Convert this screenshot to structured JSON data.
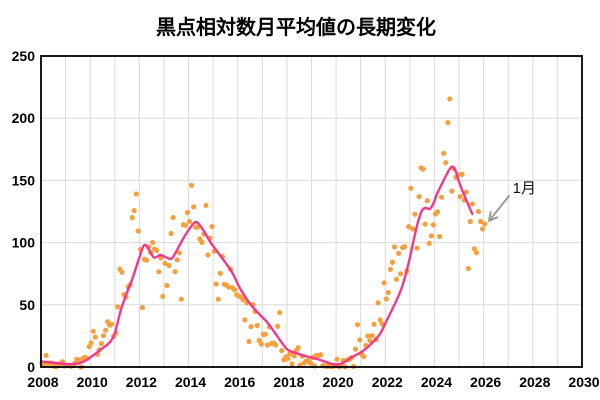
{
  "chart_data": {
    "type": "scatter+line",
    "title": "黒点相対数月平均値の長期変化",
    "xlabel": "",
    "ylabel": "",
    "xlim": [
      2008,
      2030
    ],
    "ylim": [
      0,
      250
    ],
    "x_ticks": [
      2008,
      2010,
      2012,
      2014,
      2016,
      2018,
      2020,
      2022,
      2024,
      2026,
      2028,
      2030
    ],
    "y_ticks": [
      0,
      50,
      100,
      150,
      200,
      250
    ],
    "grid": "on",
    "grid_minor_x_every_year": true,
    "legend": "none",
    "colors": {
      "monthly_dots": "#F5A03C",
      "smoothed_line": "#F0398C",
      "gridline": "#DADADA",
      "axis_frame": "#000000",
      "arrow": "#9B9B9B",
      "background": "#FFFFFF",
      "text": "#000000"
    },
    "series": [
      {
        "name": "monthly-mean-sunspot-number",
        "type": "scatter",
        "start_year": 2008,
        "start_month": 1,
        "values": [
          3.4,
          2.1,
          9.3,
          2.9,
          2.9,
          3.1,
          0.5,
          0.5,
          1.1,
          2.9,
          4.1,
          0.8,
          1.3,
          1.2,
          0.6,
          1.2,
          2.9,
          6.3,
          5.5,
          0.0,
          7.1,
          7.7,
          6.9,
          16.3,
          19.5,
          28.7,
          24.0,
          10.4,
          13.9,
          18.8,
          25.2,
          29.6,
          36.4,
          33.6,
          34.4,
          24.5,
          27.3,
          48.3,
          78.6,
          76.1,
          58.2,
          56.1,
          64.5,
          66.0,
          120.1,
          125.7,
          139.1,
          109.3,
          94.4,
          47.8,
          86.6,
          85.9,
          96.5,
          92.0,
          100.1,
          94.8,
          93.7,
          76.5,
          87.6,
          56.8,
          83.3,
          65.5,
          81.5,
          107.3,
          120.2,
          76.7,
          86.2,
          91.8,
          54.5,
          114.4,
          113.9,
          124.2,
          117.0,
          146.1,
          128.7,
          112.5,
          112.5,
          102.9,
          100.2,
          106.9,
          130.0,
          90.0,
          103.6,
          112.9,
          93.0,
          66.7,
          54.5,
          75.3,
          88.8,
          66.5,
          65.8,
          64.4,
          78.6,
          63.6,
          62.2,
          58.0,
          57.0,
          56.4,
          54.1,
          37.9,
          51.5,
          20.5,
          32.4,
          50.2,
          44.6,
          33.4,
          21.4,
          18.5,
          26.1,
          26.4,
          17.7,
          32.3,
          18.9,
          19.2,
          17.8,
          32.6,
          43.7,
          13.2,
          5.7,
          8.2,
          6.8,
          10.7,
          2.5,
          8.9,
          13.1,
          15.6,
          1.6,
          8.7,
          3.3,
          4.9,
          4.9,
          3.1,
          7.7,
          0.8,
          9.4,
          9.1,
          9.9,
          1.2,
          0.9,
          0.5,
          1.1,
          0.4,
          0.5,
          1.6,
          6.2,
          0.2,
          1.5,
          5.2,
          0.2,
          5.8,
          6.1,
          7.5,
          0.6,
          14.4,
          34.0,
          21.8,
          10.4,
          8.4,
          17.3,
          24.9,
          21.1,
          25.2,
          34.3,
          22.1,
          51.6,
          37.9,
          34.6,
          67.7,
          54.7,
          59.9,
          78.5,
          84.1,
          96.5,
          70.5,
          91.4,
          74.9,
          96.1,
          96.7,
          77.2,
          112.9,
          143.6,
          111.0,
          122.8,
          95.6,
          137.0,
          160.1,
          159.1,
          114.8,
          133.7,
          99.4,
          105.4,
          114.2,
          123.0,
          124.7,
          104.9,
          136.5,
          171.7,
          164.2,
          196.5,
          215.5,
          141.4,
          159.3,
          152.5,
          154.5,
          137.0,
          154.8,
          134.2,
          140.6,
          79.2,
          117.0,
          131.0,
          95.0,
          92.0,
          125.0,
          117.0,
          111.0,
          115.0
        ]
      },
      {
        "name": "smoothed-13-month",
        "type": "line",
        "points": [
          [
            2008.04,
            4.3
          ],
          [
            2008.3,
            3.9
          ],
          [
            2008.6,
            3.2
          ],
          [
            2008.9,
            2.6
          ],
          [
            2009.2,
            2.3
          ],
          [
            2009.5,
            2.8
          ],
          [
            2009.8,
            5.0
          ],
          [
            2010.1,
            9.0
          ],
          [
            2010.5,
            15.0
          ],
          [
            2010.8,
            20.0
          ],
          [
            2011.0,
            27.0
          ],
          [
            2011.25,
            46.0
          ],
          [
            2011.5,
            60.0
          ],
          [
            2011.7,
            70.0
          ],
          [
            2011.9,
            82.0
          ],
          [
            2012.0,
            88.0
          ],
          [
            2012.2,
            98.0
          ],
          [
            2012.4,
            94.0
          ],
          [
            2012.6,
            88.0
          ],
          [
            2012.85,
            90.0
          ],
          [
            2013.05,
            88.5
          ],
          [
            2013.3,
            87.0
          ],
          [
            2013.5,
            93.0
          ],
          [
            2013.75,
            102.0
          ],
          [
            2014.0,
            110.0
          ],
          [
            2014.3,
            116.5
          ],
          [
            2014.6,
            110.0
          ],
          [
            2014.9,
            100.0
          ],
          [
            2015.2,
            92.0
          ],
          [
            2015.5,
            84.0
          ],
          [
            2015.8,
            75.0
          ],
          [
            2016.1,
            63.0
          ],
          [
            2016.5,
            51.0
          ],
          [
            2016.9,
            42.0
          ],
          [
            2017.2,
            36.0
          ],
          [
            2017.6,
            25.0
          ],
          [
            2018.0,
            14.5
          ],
          [
            2018.4,
            11.0
          ],
          [
            2018.8,
            8.5
          ],
          [
            2019.2,
            6.5
          ],
          [
            2019.6,
            4.0
          ],
          [
            2019.95,
            2.0
          ],
          [
            2020.3,
            3.5
          ],
          [
            2020.6,
            7.5
          ],
          [
            2020.9,
            10.5
          ],
          [
            2021.2,
            14.5
          ],
          [
            2021.5,
            20.0
          ],
          [
            2021.8,
            27.0
          ],
          [
            2022.0,
            35.0
          ],
          [
            2022.3,
            47.0
          ],
          [
            2022.6,
            60.0
          ],
          [
            2022.8,
            72.0
          ],
          [
            2023.0,
            88.0
          ],
          [
            2023.2,
            106.0
          ],
          [
            2023.35,
            118.0
          ],
          [
            2023.5,
            126.0
          ],
          [
            2023.65,
            128.0
          ],
          [
            2023.8,
            127.0
          ],
          [
            2023.95,
            131.0
          ],
          [
            2024.1,
            139.0
          ],
          [
            2024.3,
            147.0
          ],
          [
            2024.5,
            155.0
          ],
          [
            2024.7,
            161.0
          ],
          [
            2024.85,
            158.0
          ],
          [
            2025.0,
            149.0
          ],
          [
            2025.15,
            141.0
          ],
          [
            2025.3,
            134.0
          ],
          [
            2025.45,
            127.0
          ],
          [
            2025.54,
            123.0
          ]
        ]
      }
    ],
    "annotation": {
      "text": "1月",
      "label_year": 2027.18,
      "label_value": 140,
      "arrow_from_year": 2027.05,
      "arrow_from_value": 138,
      "arrow_to_year": 2026.22,
      "arrow_to_value": 117.5
    }
  }
}
